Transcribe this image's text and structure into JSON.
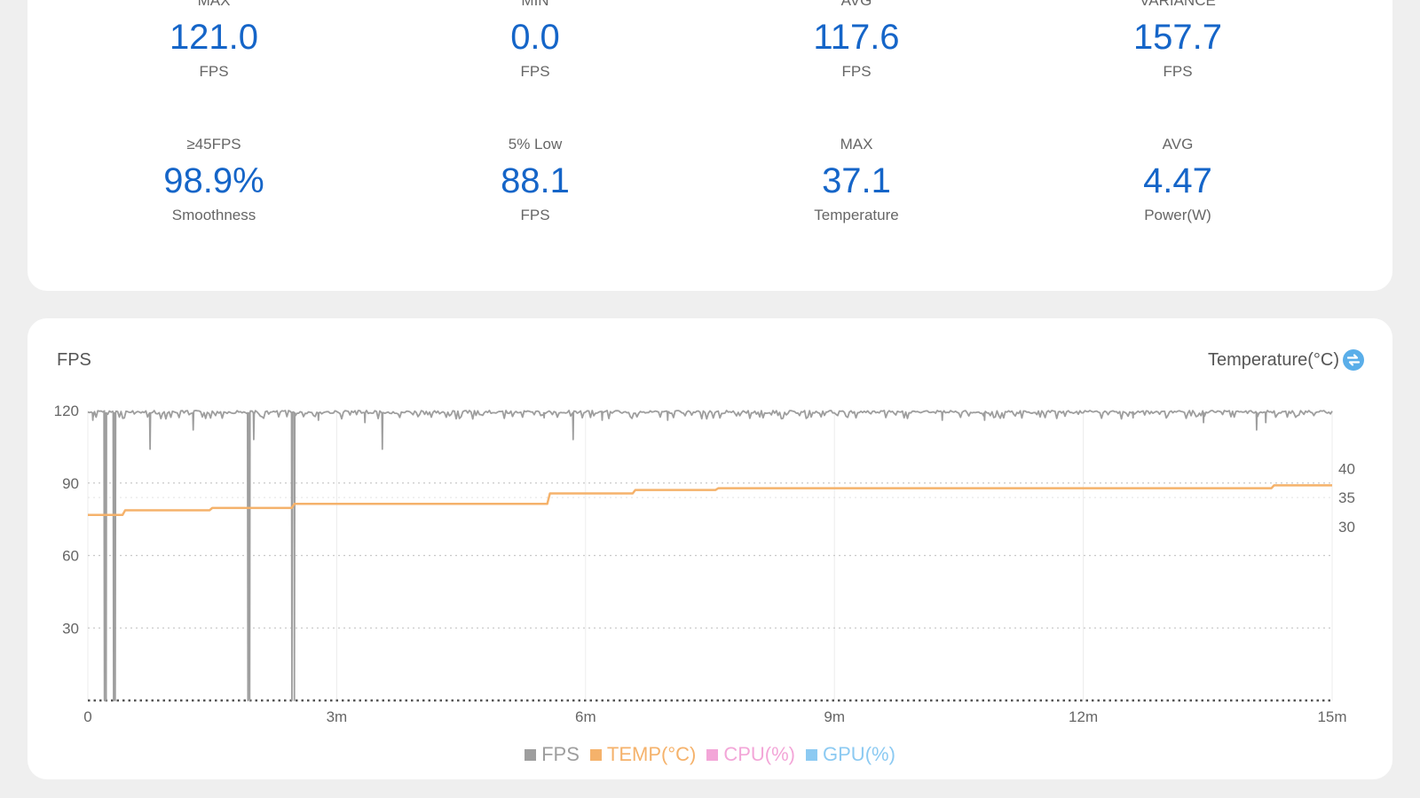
{
  "stats": [
    {
      "label": "MAX",
      "value": "121.0",
      "unit": "FPS"
    },
    {
      "label": "MIN",
      "value": "0.0",
      "unit": "FPS"
    },
    {
      "label": "AVG",
      "value": "117.6",
      "unit": "FPS"
    },
    {
      "label": "VARIANCE",
      "value": "157.7",
      "unit": "FPS"
    },
    {
      "label": "≥45FPS",
      "value": "98.9%",
      "unit": "Smoothness"
    },
    {
      "label": "5% Low",
      "value": "88.1",
      "unit": "FPS"
    },
    {
      "label": "MAX",
      "value": "37.1",
      "unit": "Temperature"
    },
    {
      "label": "AVG",
      "value": "4.47",
      "unit": "Power(W)"
    }
  ],
  "chart": {
    "left_title": "FPS",
    "right_title": "Temperature(°C)",
    "swap_icon": "swap-icon",
    "legend": [
      {
        "label": "FPS",
        "color": "#9e9e9e"
      },
      {
        "label": "TEMP(°C)",
        "color": "#f5b26b"
      },
      {
        "label": "CPU(%)",
        "color": "#f3a6d8"
      },
      {
        "label": "GPU(%)",
        "color": "#8ccaf2"
      }
    ]
  },
  "chart_data": {
    "type": "line",
    "x_unit": "minutes",
    "xlim": [
      0,
      15
    ],
    "x_ticks": [
      0,
      3,
      6,
      9,
      12,
      15
    ],
    "x_tick_labels": [
      "0",
      "3m",
      "6m",
      "9m",
      "12m",
      "15m"
    ],
    "y_left": {
      "ticks": [
        30,
        60,
        90,
        120
      ],
      "tick_labels": [
        "30",
        "60",
        "90",
        "120"
      ],
      "lim": [
        0,
        120
      ]
    },
    "y_right": {
      "ticks": [
        30,
        35,
        40
      ],
      "tick_labels": [
        "30",
        "35",
        "40"
      ],
      "lim": [
        0,
        50
      ]
    },
    "grid": true,
    "legend_position": "bottom",
    "series": [
      {
        "name": "FPS",
        "axis": "left",
        "color": "#9e9e9e",
        "baseline": 120,
        "dips": [
          {
            "x": 0.06,
            "y": 116
          },
          {
            "x": 0.2,
            "y": 0
          },
          {
            "x": 0.22,
            "y": 0
          },
          {
            "x": 0.31,
            "y": 0
          },
          {
            "x": 0.33,
            "y": 0
          },
          {
            "x": 0.75,
            "y": 104
          },
          {
            "x": 1.27,
            "y": 112
          },
          {
            "x": 1.93,
            "y": 0
          },
          {
            "x": 1.95,
            "y": 0
          },
          {
            "x": 2.0,
            "y": 108
          },
          {
            "x": 2.46,
            "y": 0
          },
          {
            "x": 2.49,
            "y": 0
          },
          {
            "x": 2.78,
            "y": 116
          },
          {
            "x": 3.34,
            "y": 115
          },
          {
            "x": 3.55,
            "y": 104
          },
          {
            "x": 5.5,
            "y": 117
          },
          {
            "x": 5.85,
            "y": 108
          },
          {
            "x": 6.2,
            "y": 116
          },
          {
            "x": 6.99,
            "y": 116
          },
          {
            "x": 10.3,
            "y": 116
          },
          {
            "x": 10.81,
            "y": 116
          },
          {
            "x": 12.6,
            "y": 117
          },
          {
            "x": 13.45,
            "y": 115
          },
          {
            "x": 14.09,
            "y": 112
          },
          {
            "x": 14.2,
            "y": 115
          }
        ]
      },
      {
        "name": "TEMP(°C)",
        "axis": "right",
        "color": "#f5b26b",
        "steps": [
          {
            "x": 0,
            "y": 32.0
          },
          {
            "x": 0.45,
            "y": 32.8
          },
          {
            "x": 1.5,
            "y": 33.2
          },
          {
            "x": 2.49,
            "y": 33.9
          },
          {
            "x": 5.57,
            "y": 35.7
          },
          {
            "x": 6.6,
            "y": 36.3
          },
          {
            "x": 7.6,
            "y": 36.6
          },
          {
            "x": 14.3,
            "y": 37.1
          },
          {
            "x": 15,
            "y": 37.1
          }
        ]
      }
    ]
  }
}
